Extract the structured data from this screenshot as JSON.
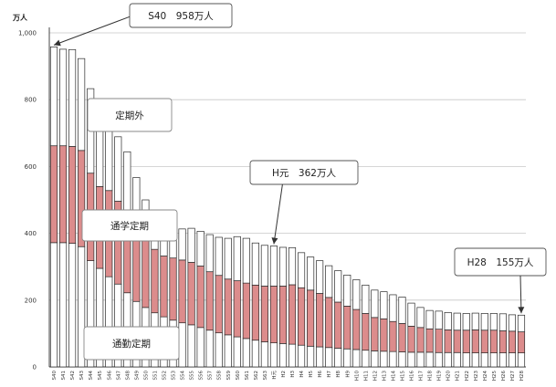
{
  "chart_data": {
    "type": "bar",
    "stacked": true,
    "y_unit": "万人",
    "ylim": [
      0,
      1000
    ],
    "yticks": [
      0,
      200,
      400,
      600,
      800,
      1000
    ],
    "ytick_labels": [
      "0",
      "200",
      "400",
      "600",
      "800",
      "1,000"
    ],
    "grid": "horizontal",
    "colors": {
      "commute": "#ffffff",
      "school": "#dc8c8c",
      "outside": "#ffffff",
      "grid": "#c8c8c8"
    },
    "categories": [
      "S40",
      "S41",
      "S42",
      "S43",
      "S44",
      "S45",
      "S46",
      "S47",
      "S48",
      "S49",
      "S50",
      "S51",
      "S52",
      "S53",
      "S54",
      "S55",
      "S56",
      "S57",
      "S58",
      "S59",
      "S60",
      "S61",
      "S62",
      "S63",
      "H元",
      "H2",
      "H3",
      "H4",
      "H5",
      "H6",
      "H7",
      "H8",
      "H9",
      "H10",
      "H11",
      "H12",
      "H13",
      "H14",
      "H15",
      "H16",
      "H17",
      "H18",
      "H19",
      "H20",
      "H21",
      "H22",
      "H23",
      "H24",
      "H25",
      "H26",
      "H27",
      "H28"
    ],
    "series": [
      {
        "name": "通勤定期",
        "key": "commute",
        "values": [
          372,
          372,
          370,
          360,
          318,
          295,
          270,
          248,
          222,
          196,
          178,
          162,
          150,
          140,
          132,
          126,
          118,
          110,
          102,
          96,
          90,
          85,
          80,
          75,
          72,
          70,
          68,
          65,
          62,
          60,
          58,
          56,
          54,
          52,
          50,
          48,
          47,
          46,
          45,
          44,
          44,
          44,
          43,
          43,
          43,
          42,
          42,
          42,
          42,
          42,
          42,
          42
        ]
      },
      {
        "name": "通学定期",
        "key": "school",
        "values": [
          290,
          290,
          290,
          288,
          262,
          245,
          258,
          248,
          237,
          244,
          213,
          190,
          182,
          186,
          188,
          187,
          184,
          175,
          172,
          167,
          168,
          166,
          165,
          167,
          170,
          172,
          178,
          172,
          168,
          160,
          150,
          138,
          128,
          120,
          110,
          100,
          97,
          90,
          85,
          78,
          74,
          70,
          70,
          68,
          67,
          68,
          69,
          68,
          68,
          66,
          65,
          63
        ]
      },
      {
        "name": "定期外",
        "key": "outside",
        "values": [
          296,
          289,
          290,
          275,
          253,
          225,
          212,
          193,
          185,
          127,
          109,
          106,
          106,
          99,
          93,
          102,
          104,
          111,
          114,
          122,
          132,
          134,
          126,
          122,
          120,
          116,
          111,
          105,
          99,
          98,
          95,
          94,
          93,
          89,
          85,
          82,
          81,
          80,
          79,
          69,
          60,
          55,
          54,
          52,
          51,
          50,
          50,
          50,
          50,
          51,
          49,
          50
        ]
      }
    ],
    "callouts": [
      {
        "id": "s40",
        "text": "S40　958万人",
        "target_index": 0,
        "target_value": 958
      },
      {
        "id": "h1",
        "text": "H元　362万人",
        "target_index": 24,
        "target_value": 362
      },
      {
        "id": "h28",
        "text": "H28　155万人",
        "target_index": 51,
        "target_value": 155
      }
    ],
    "series_labels": [
      "定期外",
      "通学定期",
      "通勤定期"
    ]
  }
}
